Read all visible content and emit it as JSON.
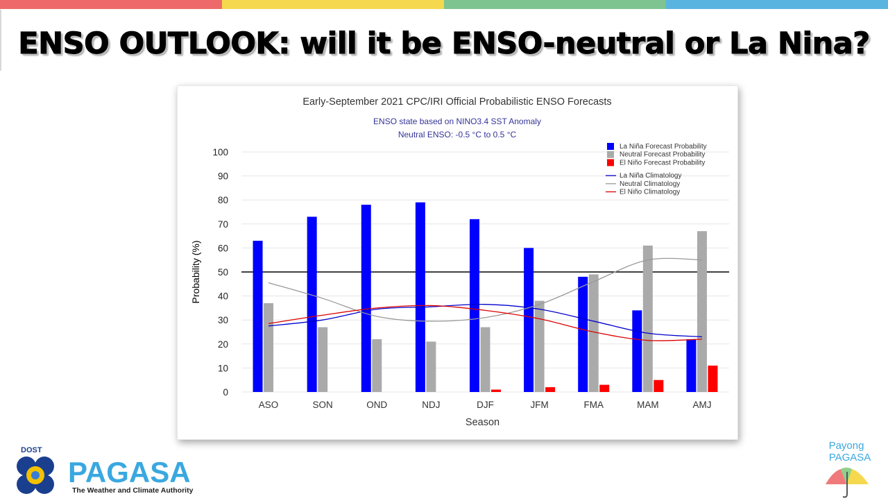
{
  "slide": {
    "title": "ENSO OUTLOOK: will it be ENSO-neutral or  La Nina?",
    "stripe_colors": [
      "#ee6a6a",
      "#f5d84e",
      "#7dc490",
      "#5ab4e0"
    ]
  },
  "chart_data": {
    "type": "bar",
    "title": "Early-September 2021 CPC/IRI Official Probabilistic ENSO Forecasts",
    "subtitle_lines": [
      "ENSO state based on NINO3.4 SST Anomaly",
      "Neutral ENSO: -0.5 °C to 0.5 °C"
    ],
    "xlabel": "Season",
    "ylabel": "Probability (%)",
    "ylim": [
      0,
      100
    ],
    "yticks": [
      0,
      10,
      20,
      30,
      40,
      50,
      60,
      70,
      80,
      90,
      100
    ],
    "reference_line": 50,
    "grid": true,
    "legend_position": "top-right",
    "categories": [
      "ASO",
      "SON",
      "OND",
      "NDJ",
      "DJF",
      "JFM",
      "FMA",
      "MAM",
      "AMJ"
    ],
    "series": [
      {
        "name": "La Niña Forecast Probability",
        "kind": "bar",
        "color": "#0000ff",
        "values": [
          63,
          73,
          78,
          79,
          72,
          60,
          48,
          34,
          22
        ]
      },
      {
        "name": "Neutral Forecast Probability",
        "kind": "bar",
        "color": "#aaaaaa",
        "values": [
          37,
          27,
          22,
          21,
          27,
          38,
          49,
          61,
          67
        ]
      },
      {
        "name": "El Niño Forecast Probability",
        "kind": "bar",
        "color": "#ff0000",
        "values": [
          0,
          0,
          0,
          0,
          1,
          2,
          3,
          5,
          11
        ]
      },
      {
        "name": "La Niña Climatology",
        "kind": "line",
        "color": "#0000cc",
        "values": [
          27.5,
          30,
          34.5,
          35.5,
          36.5,
          34.5,
          29.5,
          24.5,
          23
        ]
      },
      {
        "name": "Neutral Climatology",
        "kind": "line",
        "color": "#999999",
        "values": [
          45.5,
          39,
          31.5,
          29.5,
          31,
          36.5,
          46,
          55,
          55
        ]
      },
      {
        "name": "El Niño Climatology",
        "kind": "line",
        "color": "#dd0000",
        "values": [
          28.5,
          32,
          35,
          36,
          34,
          30.5,
          25,
          21.5,
          22
        ]
      }
    ]
  },
  "footer": {
    "dost_label": "DOST",
    "agency_name": "PAGASA",
    "agency_tagline": "The Weather and Climate Authority",
    "payong_line1": "Payong",
    "payong_line2": "PAGASA"
  }
}
